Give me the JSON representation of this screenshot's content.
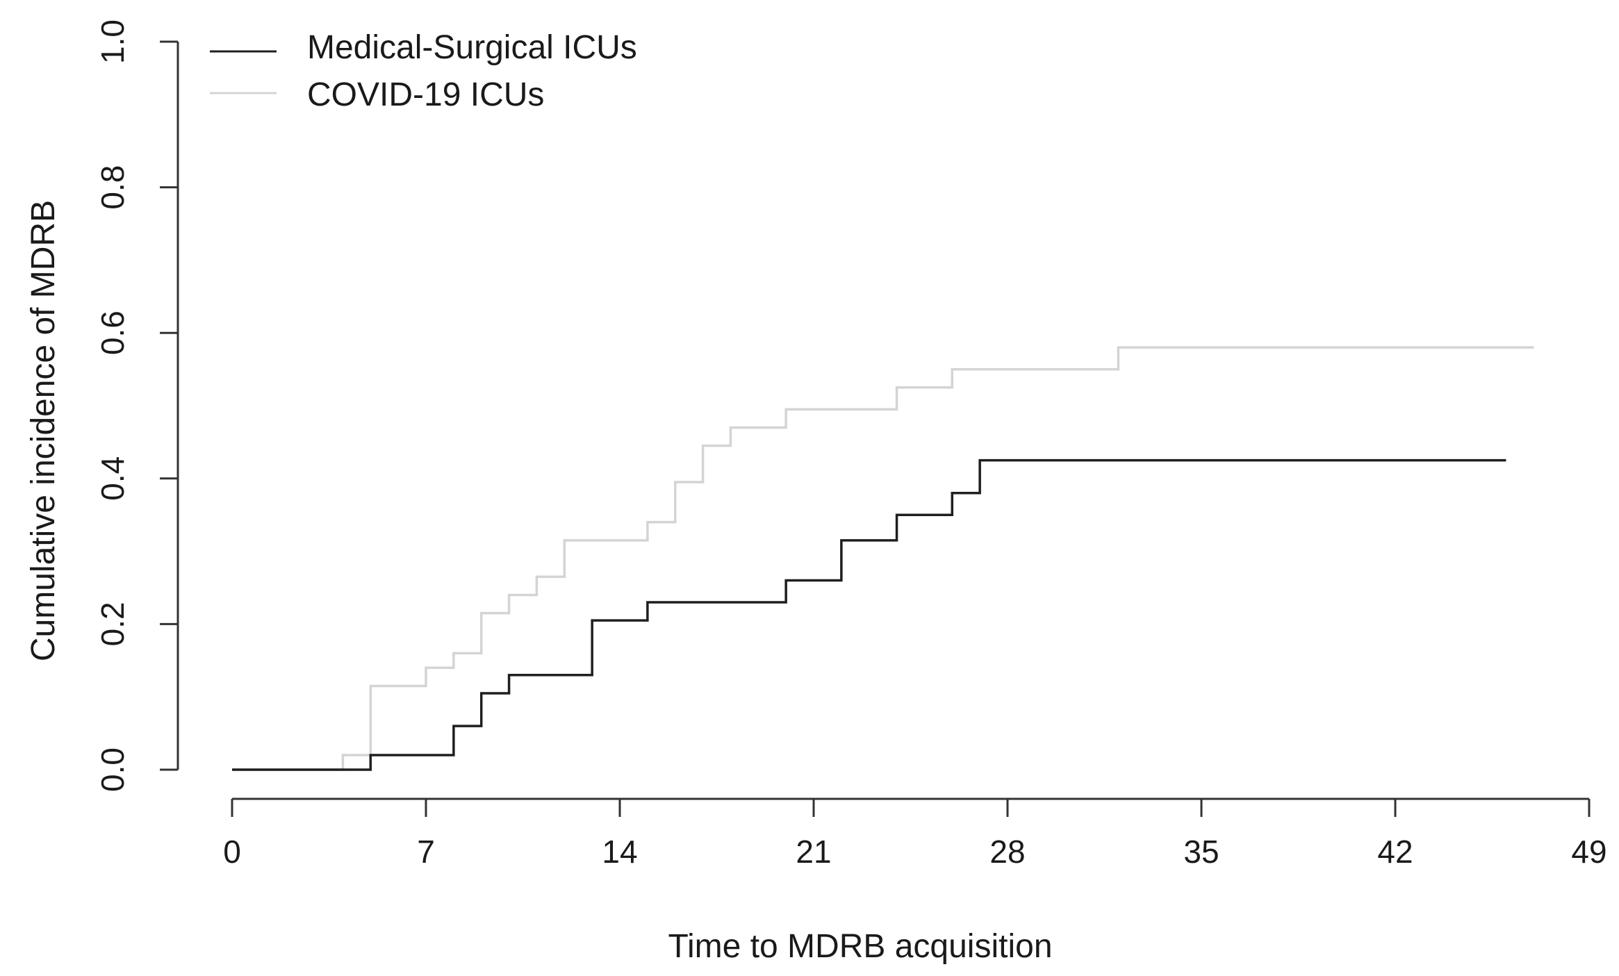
{
  "chart_data": {
    "type": "line",
    "subtype": "step",
    "title": "",
    "xlabel": "Time to MDRB acquisition",
    "ylabel": "Cumulative incidence of MDRB",
    "xlim": [
      0,
      49
    ],
    "ylim": [
      0,
      1
    ],
    "xticks": [
      0,
      7,
      14,
      21,
      28,
      35,
      42,
      49
    ],
    "yticks": [
      "0.0",
      "0.2",
      "0.4",
      "0.6",
      "0.8",
      "1.0"
    ],
    "grid": false,
    "legend_position": "top-left",
    "series": [
      {
        "name": "Medical-Surgical ICUs",
        "color": "#1f1f1f",
        "x": [
          0,
          5,
          8,
          9,
          10,
          13,
          15,
          20,
          22,
          24,
          26,
          27,
          46
        ],
        "y": [
          0,
          0.02,
          0.06,
          0.105,
          0.13,
          0.205,
          0.23,
          0.26,
          0.315,
          0.35,
          0.38,
          0.425,
          0.425
        ]
      },
      {
        "name": "COVID-19 ICUs",
        "color": "#d4d4d4",
        "x": [
          0,
          4,
          5,
          7,
          8,
          9,
          10,
          11,
          12,
          15,
          16,
          17,
          18,
          20,
          24,
          26,
          32,
          47
        ],
        "y": [
          0,
          0.02,
          0.115,
          0.14,
          0.16,
          0.215,
          0.24,
          0.265,
          0.315,
          0.34,
          0.395,
          0.445,
          0.47,
          0.495,
          0.525,
          0.55,
          0.58,
          0.58
        ]
      }
    ]
  }
}
